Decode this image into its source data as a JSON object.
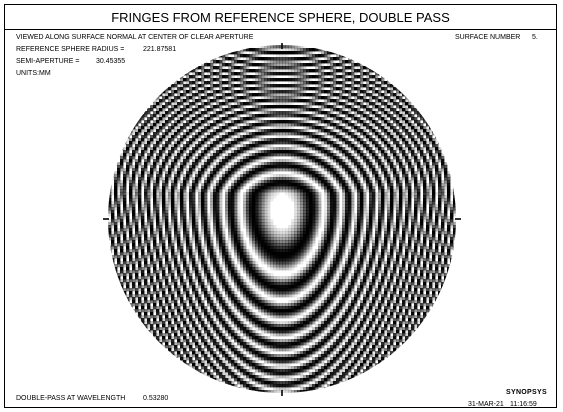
{
  "plot": {
    "title": "FRINGES FROM REFERENCE SPHERE, DOUBLE PASS",
    "view_note": "VIEWED ALONG SURFACE NORMAL AT CENTER OF CLEAR APERTURE",
    "surface_label": "SURFACE NUMBER",
    "surface_value": "5.",
    "radius_label": "REFERENCE SPHERE RADIUS =",
    "radius_value": "221.87581",
    "semi_aperture_label": "SEMI-APERTURE =",
    "semi_aperture_value": "30.45355",
    "units_label": "UNITS:",
    "units_value": "MM",
    "wavelength_label": "DOUBLE-PASS AT WAVELENGTH",
    "wavelength_value": "0.53280",
    "logo_text": "SYNOPSYS",
    "date": "31-MAR-21",
    "time": "11:16:59"
  },
  "colors": {
    "fringe_dark": "#000000",
    "fringe_light": "#ffffff",
    "frame": "#000000"
  }
}
